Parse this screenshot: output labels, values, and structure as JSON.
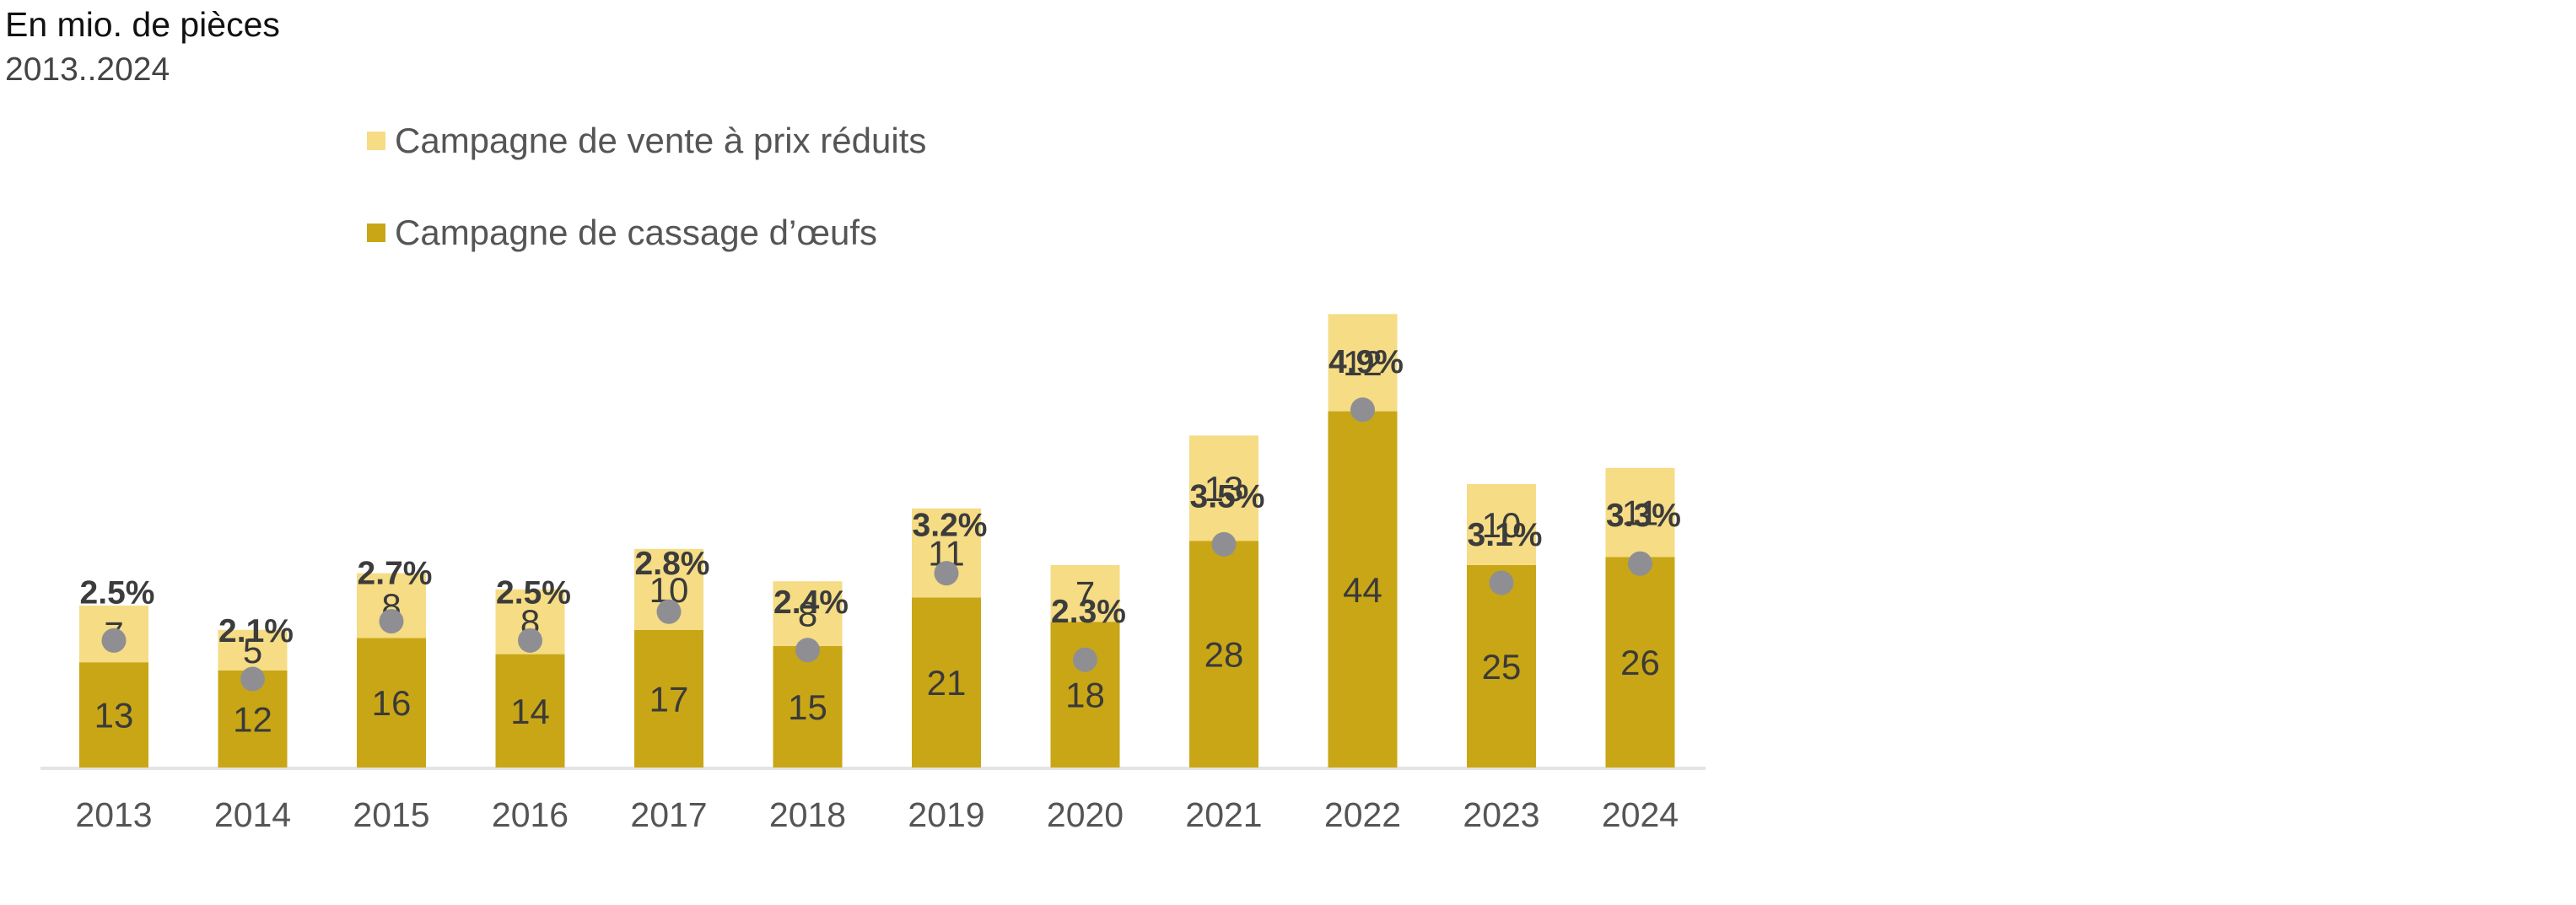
{
  "header": {
    "subtitle": "En mio. de pièces",
    "period": "2013..2024"
  },
  "chart_data": {
    "type": "bar",
    "stacked": true,
    "categories": [
      "2013",
      "2014",
      "2015",
      "2016",
      "2017",
      "2018",
      "2019",
      "2020",
      "2021",
      "2022",
      "2023",
      "2024"
    ],
    "series": [
      {
        "name": "Campagne de cassage d’œufs",
        "color": "#c9a615",
        "values": [
          13,
          12,
          16,
          14,
          17,
          15,
          21,
          18,
          28,
          44,
          25,
          26
        ]
      },
      {
        "name": "Campagne de vente à prix réduits",
        "color": "#f5dc85",
        "values": [
          7,
          5,
          8,
          8,
          10,
          8,
          11,
          7,
          13,
          12,
          10,
          11
        ]
      }
    ],
    "share_labels": [
      "2.5%",
      "2.1%",
      "2.7%",
      "2.5%",
      "2.8%",
      "2.4%",
      "3.2%",
      "2.3%",
      "3.5%",
      "4.9%",
      "3.1%",
      "3.3%"
    ],
    "share_values": [
      2.5,
      2.1,
      2.7,
      2.5,
      2.8,
      2.4,
      3.2,
      2.3,
      3.5,
      4.9,
      3.1,
      3.3
    ],
    "marker_color": "#8f8f93",
    "legend_placement": "top-left",
    "grid": false
  }
}
